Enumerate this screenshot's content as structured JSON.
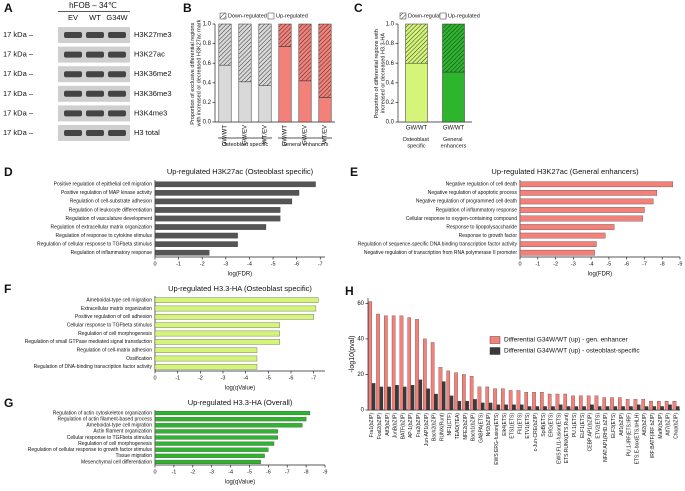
{
  "blot": {
    "panel": "A",
    "title": "hFOB – 34℃",
    "lanes": [
      "EV",
      "WT",
      "G34W"
    ],
    "rows": [
      {
        "marker": "17 kDa –",
        "label": "H3K27me3"
      },
      {
        "marker": "17 kDa –",
        "label": "H3K27ac"
      },
      {
        "marker": "17 kDa –",
        "label": "H3K36me2"
      },
      {
        "marker": "17 kDa –",
        "label": "H3K36me3"
      },
      {
        "marker": "17 kDa –",
        "label": "H3K4me3"
      },
      {
        "marker": "17 kDa –",
        "label": "H3 total"
      }
    ]
  },
  "chart_data": [
    {
      "panel": "B",
      "type": "stacked_bar",
      "ylabel": "Proportion of exclusive differential regions with increased or decreased H3K27ac mark",
      "categories": [
        "GW/WT",
        "GW/EV",
        "WT/EV",
        "GW/WT",
        "GW/EV",
        "WT/EV"
      ],
      "bar_colors": [
        "#d9d9d9",
        "#d9d9d9",
        "#d9d9d9",
        "#f4807a",
        "#f4807a",
        "#f4807a"
      ],
      "groups": [
        "Osteoblast specific",
        "General enhancers"
      ],
      "series": [
        {
          "name": "Down-regulated",
          "hatch": true,
          "values": [
            0.42,
            0.59,
            0.63,
            0.23,
            0.58,
            0.75
          ]
        },
        {
          "name": "Up-regulated",
          "hatch": false,
          "values": [
            0.58,
            0.41,
            0.37,
            0.77,
            0.42,
            0.25
          ]
        }
      ],
      "ylim": [
        0,
        1
      ],
      "yticks": [
        {
          "value": 0,
          "label": "0.0"
        },
        0.2,
        0.4,
        0.6,
        0.8,
        {
          "value": 1,
          "label": "1.0"
        }
      ]
    },
    {
      "panel": "C",
      "type": "stacked_bar",
      "ylabel": "Proportion of differential regions with increased or decreased H3.3-HA",
      "categories": [
        "GW/WT",
        "GW/WT"
      ],
      "bar_colors": [
        "#d4f57a",
        "#2db52d"
      ],
      "groups": [
        "Osteoblast specific",
        "General enhancers"
      ],
      "series": [
        {
          "name": "Down-regulated",
          "hatch": true,
          "values": [
            0.4,
            0.49
          ]
        },
        {
          "name": "Up-regulated",
          "hatch": false,
          "values": [
            0.6,
            0.51
          ]
        }
      ],
      "ylim": [
        0,
        1
      ],
      "yticks": [
        {
          "value": 0,
          "label": "0.0"
        },
        0.2,
        0.4,
        0.6,
        0.8,
        {
          "value": 1,
          "label": "1.0"
        }
      ]
    },
    {
      "panel": "D",
      "type": "hbar",
      "title": "Up-regulated H3K27ac (Osteoblast specific)",
      "xlabel": "log(FDR)",
      "color": "#555555",
      "categories": [
        "Positive regulation of epithelial cell migration",
        "Positive regulation of MAP kinase activity",
        "Regulation of cell-substrate adhesion",
        "Regulation of leukocyte differentiation",
        "Regulation of vasculature development",
        "Regulation of extracellular matrix organization",
        "Regulation of response to cytokine stimulus",
        "Regulation of cellular response to TGFbeta stimulus",
        "Regulation of inflammatory response"
      ],
      "values": [
        -6.8,
        -6.1,
        -5.8,
        -5.3,
        -5.3,
        -4.7,
        -3.5,
        -3.5,
        -2.3
      ],
      "xlim": [
        0,
        -7.2
      ],
      "xticks": [
        0,
        -1,
        -2,
        -3,
        -4,
        -5,
        -6,
        -7
      ]
    },
    {
      "panel": "E",
      "type": "hbar",
      "title": "Up-regulated H3K27ac (General enhancers)",
      "xlabel": "log(FDR)",
      "color": "#f4807a",
      "categories": [
        "Negative regulation of cell death",
        "Negative regulation of apoptotic process",
        "Negative regulation of programmed cell death",
        "Regulation of inflammatory response",
        "Cellular response to oxygen-containing compound",
        "Response to lipopolysaccharide",
        "Response to growth factor",
        "Regulation of sequence-specific DNA binding transcription factor activity",
        "Negative regulation of transcription from RNA polymerase II promoter"
      ],
      "values": [
        -8.6,
        -7.7,
        -7.5,
        -7.0,
        -6.9,
        -5.3,
        -4.8,
        -4.3,
        -4.2
      ],
      "xlim": [
        0,
        -9
      ],
      "xticks": [
        0,
        -1,
        -2,
        -3,
        -4,
        -5,
        -6,
        -7,
        -8,
        -9
      ]
    },
    {
      "panel": "F",
      "type": "hbar",
      "title": "Up-regulated H3.3-HA (Osteoblast specific)",
      "xlabel": "log(qValue)",
      "color": "#d4f57a",
      "categories": [
        "Ameboidal-type cell migration",
        "Extracellular matrix organization",
        "Positive regulation of cell adhesion",
        "Cellular response to TGFbeta stimulus",
        "Regulation of cell morphogenesis",
        "Regulation of small GTPase mediated signal transduction",
        "Regulation of cell-matrix adhesion",
        "Ossification",
        "Regulation of DNA-binding transcription factor activity"
      ],
      "values": [
        -7.2,
        -7.1,
        -7.0,
        -5.5,
        -5.5,
        -5.5,
        -4.5,
        -4.5,
        -4.5
      ],
      "xlim": [
        0,
        -7.5
      ],
      "xticks": [
        0,
        -1,
        -2,
        -3,
        -4,
        -5,
        -6,
        -7
      ]
    },
    {
      "panel": "G",
      "type": "hbar",
      "title": "Up-regulated H3.3-HA (Overall)",
      "xlabel": "log(qValue)",
      "color": "#2db52d",
      "categories": [
        "Regulation of actin cytoskeleton organization",
        "Regulation of actin filament-based process",
        "Ameboidal-type cell migration",
        "Actin filament organization",
        "Cellular response to TGFbeta stimulus",
        "Regulation of cell morphogenesis",
        "Regulation of cellular response to growth factor stimulus",
        "Tissue migration",
        "Mesenchymal cell differentiation"
      ],
      "values": [
        -8.2,
        -8.0,
        -7.8,
        -6.5,
        -6.5,
        -6.3,
        -6.0,
        -5.8,
        -5.6
      ],
      "xlim": [
        0,
        -9
      ],
      "xticks": [
        0,
        -1,
        -2,
        -3,
        -4,
        -5,
        -6,
        -7,
        -8,
        -9
      ]
    },
    {
      "panel": "H",
      "type": "grouped_bar",
      "ylabel": "-log10(pval)",
      "legend": "right",
      "categories": [
        "Fra1(bZIP)",
        "Fosl2(bZIP)",
        "Atf3(bZIP)",
        "JunB(bZIP)",
        "BATF(bZIP)",
        "AP-1(bZIP)",
        "Fra2(bZIP)",
        "Jun-AP1(bZIP)",
        "Bach2(bZIP)",
        "RUNX(Runt)",
        "NF1(CTF)",
        "TEAD(TEA)",
        "NFE2(bZIP)",
        "Bach1(bZIP)",
        "GABPA(ETS)",
        "Nrf2(bZIP)",
        "EWS:ERG-fusion(ETS)",
        "Elk4(ETS)",
        "ETS1(ETS)",
        "Fli1(ETS)",
        "ETV1(ETS)",
        "c-Jun-CRE(bZIP)",
        "SpiB(ETS)",
        "ERG(ETS)",
        "EWS:FLI1-fusion(ETS)",
        "ETS:RUNX(ETS,Runt)",
        "PU.1(ETS)",
        "ELF1(ETS)",
        "CEBP:AP1(bZIP)",
        "ETV2(ETS)",
        "NFAT:AP1(RHD,bZIP)",
        "ELF3(ETS)",
        "Atf1(bZIP)",
        "PU.1-IRF(ETS:IRF)",
        "ETS:E-box(ETS,bHLH)",
        "Atf2(bZIP)",
        "IRF:BATF(IRF:bZIP)",
        "MafK(bZIP)",
        "Atf7(bZIP)",
        "Chop(bZIP)"
      ],
      "series": [
        {
          "name": "Differential G34W/WT (up) - gen. enhancer",
          "color": "#f4807a",
          "values": [
            61,
            54,
            53,
            53,
            53,
            52,
            51,
            40,
            38,
            24,
            22,
            21,
            20,
            19,
            13,
            13,
            12,
            12,
            11,
            11,
            10,
            10,
            10,
            9,
            9,
            9,
            8,
            8,
            8,
            8,
            7,
            7,
            7,
            6,
            6,
            6,
            5,
            5,
            5,
            5
          ]
        },
        {
          "name": "Differential G34W/WT (up) - osteoblast-specific",
          "color": "#3a3a3a",
          "values": [
            15,
            13,
            13,
            14,
            13,
            14,
            17,
            12,
            9,
            16,
            8,
            5,
            5,
            6,
            4,
            4,
            3,
            3,
            3,
            3,
            2,
            2,
            2,
            2,
            3,
            2,
            2,
            2,
            3,
            2,
            2,
            2,
            2,
            2,
            3,
            2,
            2,
            2,
            3,
            2
          ]
        }
      ],
      "ylim": [
        0,
        63
      ],
      "yticks": [
        0,
        20,
        40,
        60
      ]
    }
  ]
}
